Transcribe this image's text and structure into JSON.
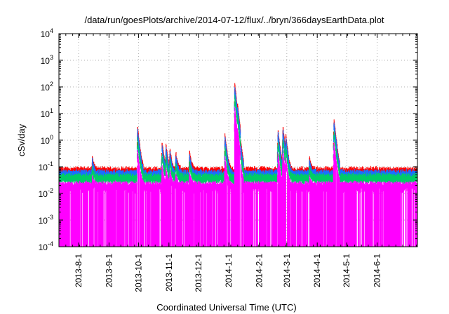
{
  "chart_data": {
    "type": "line",
    "title": "/data/run/goesPlots/archive/2014-07-12/flux/../bryn/366daysEarthData.plot",
    "xlabel": "Coordinated Universal Time (UTC)",
    "ylabel": "cSv/day",
    "yscale": "log",
    "ylim": [
      0.0001,
      10000
    ],
    "xlim": [
      "2013-07-12",
      "2014-07-12"
    ],
    "grid": true,
    "x_ticks": [
      "2013-8-1",
      "2013-9-1",
      "2013-10-1",
      "2013-11-1",
      "2013-12-1",
      "2014-1-1",
      "2014-2-1",
      "2014-3-1",
      "2014-4-1",
      "2014-5-1",
      "2014-6-1"
    ],
    "y_ticks": [
      {
        "mant": "10",
        "exp": "-4"
      },
      {
        "mant": "10",
        "exp": "-3"
      },
      {
        "mant": "10",
        "exp": "-2"
      },
      {
        "mant": "10",
        "exp": "-1"
      },
      {
        "mant": "10",
        "exp": "0"
      },
      {
        "mant": "10",
        "exp": "1"
      },
      {
        "mant": "10",
        "exp": "2"
      },
      {
        "mant": "10",
        "exp": "3"
      },
      {
        "mant": "10",
        "exp": "4"
      }
    ],
    "series": [
      {
        "color": "#ff0000",
        "baseline": 0.07,
        "peak_scale": 1.0
      },
      {
        "color": "#1a6fff",
        "baseline": 0.055,
        "peak_scale": 0.75
      },
      {
        "color": "#00cc66",
        "baseline": 0.04,
        "peak_scale": 0.35
      },
      {
        "color": "#ff00ff",
        "baseline": 0.02,
        "peak_scale": 0.12,
        "floor": 0.0001
      }
    ],
    "events": [
      {
        "date": "2013-08-15",
        "peak": 0.15
      },
      {
        "date": "2013-09-30",
        "peak": 3.0
      },
      {
        "date": "2013-10-25",
        "peak": 0.7
      },
      {
        "date": "2013-10-29",
        "peak": 0.5
      },
      {
        "date": "2013-11-02",
        "peak": 0.35
      },
      {
        "date": "2013-11-08",
        "peak": 0.25
      },
      {
        "date": "2013-11-22",
        "peak": 0.3
      },
      {
        "date": "2013-12-28",
        "peak": 1.5
      },
      {
        "date": "2014-01-07",
        "peak": 120
      },
      {
        "date": "2014-01-10",
        "peak": 8
      },
      {
        "date": "2014-02-20",
        "peak": 2.3
      },
      {
        "date": "2014-02-25",
        "peak": 3.0
      },
      {
        "date": "2014-02-28",
        "peak": 1.2
      },
      {
        "date": "2014-03-24",
        "peak": 0.15
      },
      {
        "date": "2014-04-18",
        "peak": 6.0
      }
    ]
  }
}
